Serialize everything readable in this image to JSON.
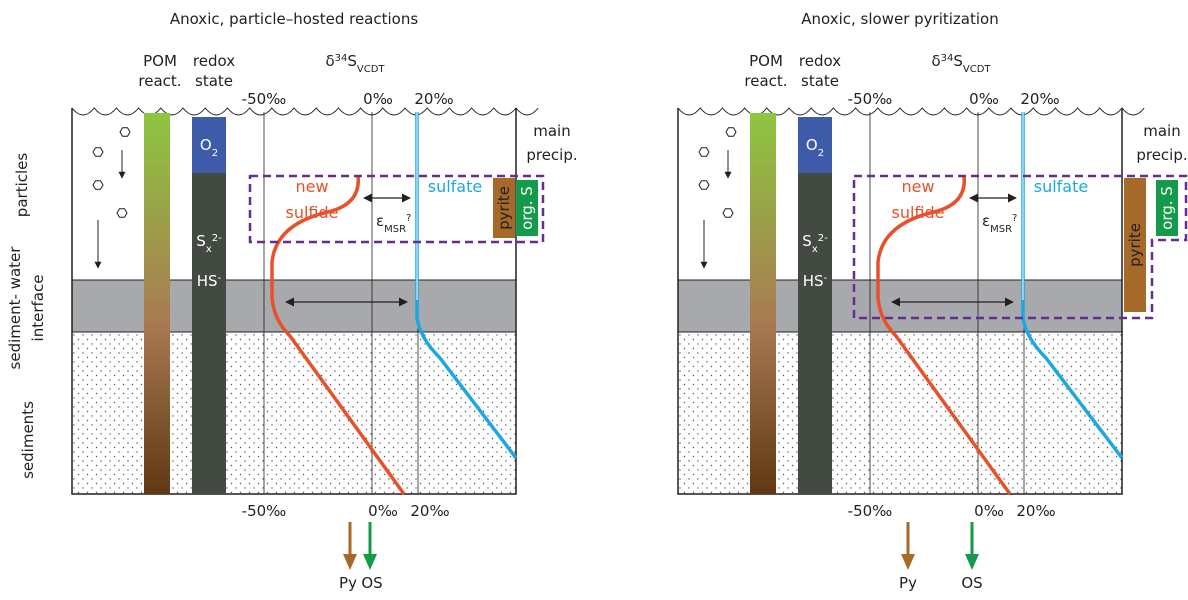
{
  "side_labels": {
    "particles": "particles",
    "interface": [
      "sediment- water",
      "interface"
    ],
    "sediments": "sediments"
  },
  "panels": [
    {
      "title": "Anoxic, particle–hosted reactions",
      "pom": [
        "POM",
        "react."
      ],
      "redox": [
        "redox",
        "state"
      ],
      "isotope": {
        "delta": "δ",
        "mass": "34",
        "element": "S",
        "standard": "VCDT"
      },
      "top_ticks": [
        "-50‰",
        "0‰",
        "20‰"
      ],
      "bottom_ticks": [
        "-50‰",
        "0‰",
        "20‰"
      ],
      "precip": [
        "main",
        "precip."
      ],
      "o2": {
        "element": "O",
        "sub": "2"
      },
      "sx": {
        "element": "S",
        "sub": "x",
        "sup": "2-"
      },
      "hs": {
        "element": "HS",
        "sup": "-"
      },
      "new_sulfide": [
        "new",
        "sulfide"
      ],
      "sulfate": "sulfate",
      "epsilon": {
        "symbol": "ε",
        "sub": "MSR",
        "mark": "?"
      },
      "pyrite": "pyrite",
      "org_s": "org. S",
      "py": "Py",
      "os": "OS"
    },
    {
      "title": "Anoxic, slower pyritization",
      "pom": [
        "POM",
        "react."
      ],
      "redox": [
        "redox",
        "state"
      ],
      "isotope": {
        "delta": "δ",
        "mass": "34",
        "element": "S",
        "standard": "VCDT"
      },
      "top_ticks": [
        "-50‰",
        "0‰",
        "20‰"
      ],
      "bottom_ticks": [
        "-50‰",
        "0‰",
        "20‰"
      ],
      "precip": [
        "main",
        "precip."
      ],
      "o2": {
        "element": "O",
        "sub": "2"
      },
      "sx": {
        "element": "S",
        "sub": "x",
        "sup": "2-"
      },
      "hs": {
        "element": "HS",
        "sup": "-"
      },
      "new_sulfide": [
        "new",
        "sulfide"
      ],
      "sulfate": "sulfate",
      "epsilon": {
        "symbol": "ε",
        "sub": "MSR",
        "mark": "?"
      },
      "pyrite": "pyrite",
      "org_s": "org. S",
      "py": "Py",
      "os": "OS"
    }
  ]
}
